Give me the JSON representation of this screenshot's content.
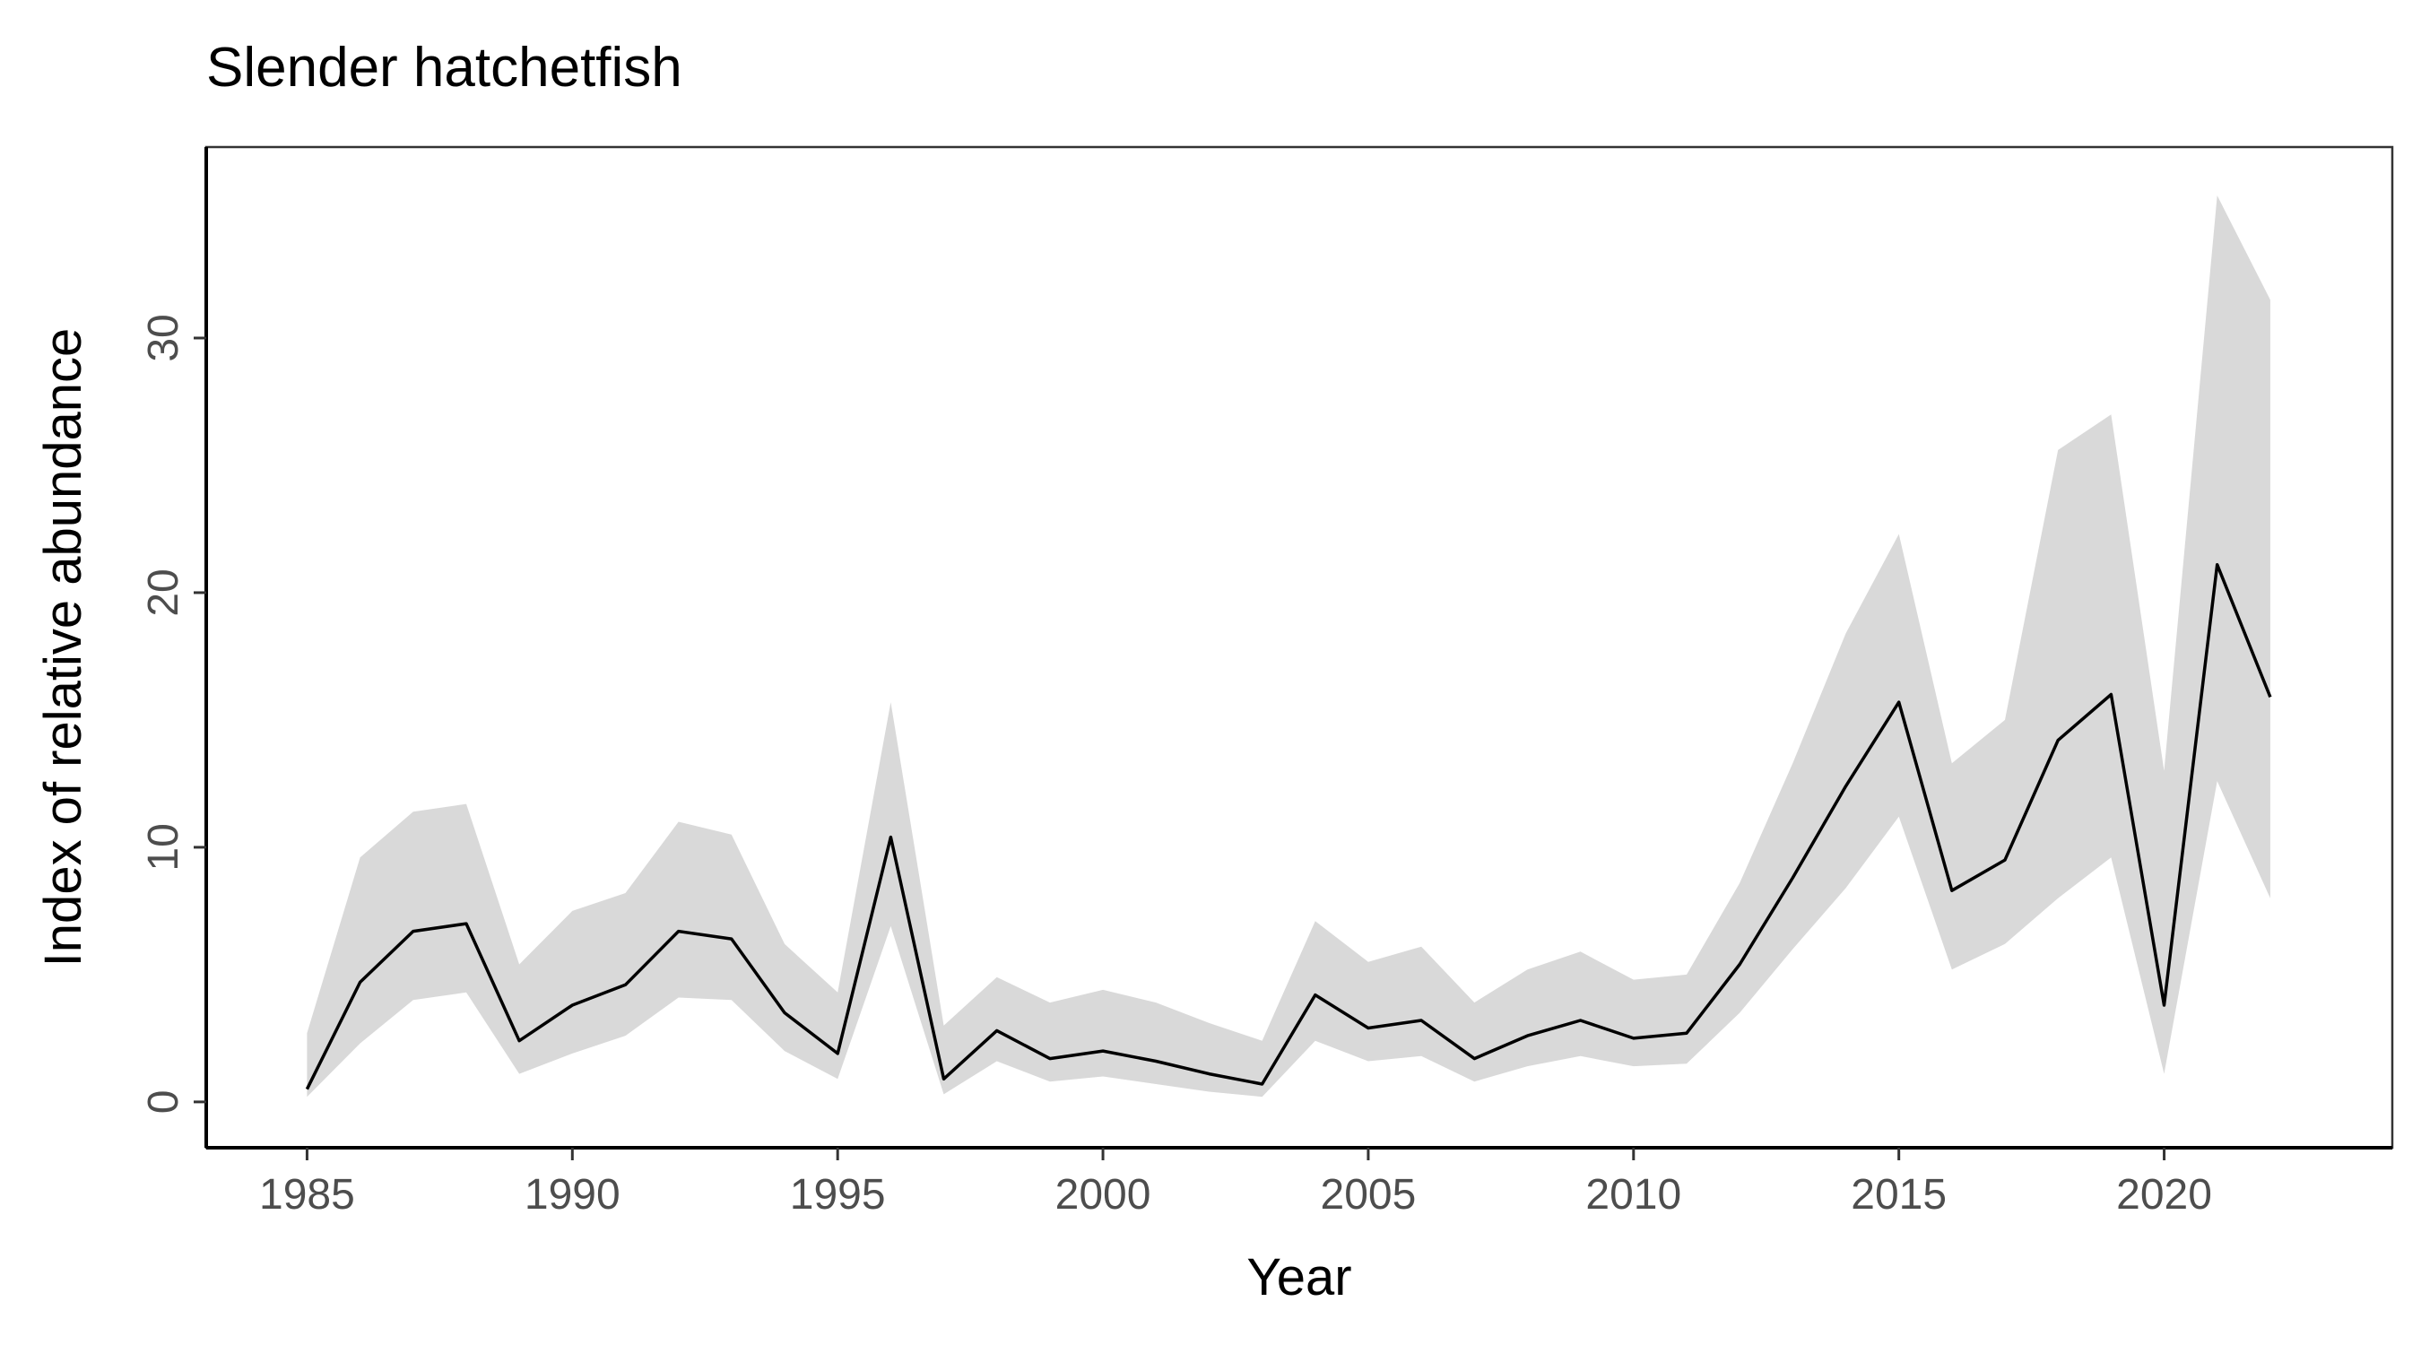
{
  "chart_data": {
    "type": "line",
    "title": "Slender hatchetfish",
    "xlabel": "Year",
    "ylabel": "Index of relative abundance",
    "xlim": [
      1983.1,
      2024.3
    ],
    "ylim": [
      -1.8,
      37.5
    ],
    "xticks": [
      1985,
      1990,
      1995,
      2000,
      2005,
      2010,
      2015,
      2020
    ],
    "yticks": [
      0,
      10,
      20,
      30
    ],
    "grid": false,
    "legend": "none",
    "line_color": "#000000",
    "ribbon_color": "#d9d9d9",
    "x": [
      1985,
      1986,
      1987,
      1988,
      1989,
      1990,
      1991,
      1992,
      1993,
      1994,
      1995,
      1996,
      1997,
      1998,
      1999,
      2000,
      2001,
      2002,
      2003,
      2004,
      2005,
      2006,
      2007,
      2008,
      2009,
      2010,
      2011,
      2012,
      2013,
      2014,
      2015,
      2016,
      2017,
      2018,
      2019,
      2020,
      2021,
      2022
    ],
    "series": [
      {
        "values": [
          0.5,
          4.7,
          6.7,
          7.0,
          2.4,
          3.8,
          4.6,
          6.7,
          6.4,
          3.5,
          1.9,
          10.4,
          0.9,
          2.8,
          1.7,
          2.0,
          1.6,
          1.1,
          0.7,
          4.2,
          2.9,
          3.2,
          1.7,
          2.6,
          3.2,
          2.5,
          2.7,
          5.4,
          8.8,
          12.4,
          15.7,
          8.3,
          9.5,
          14.2,
          16.0,
          3.8,
          21.1,
          15.9
        ],
        "lower": [
          0.2,
          2.3,
          4.0,
          4.3,
          1.1,
          1.9,
          2.6,
          4.1,
          4.0,
          2.0,
          0.9,
          6.9,
          0.3,
          1.6,
          0.8,
          1.0,
          0.7,
          0.4,
          0.2,
          2.4,
          1.6,
          1.8,
          0.8,
          1.4,
          1.8,
          1.4,
          1.5,
          3.5,
          6.0,
          8.4,
          11.2,
          5.2,
          6.2,
          8.0,
          9.6,
          1.1,
          12.6,
          8.0
        ],
        "upper": [
          2.7,
          9.6,
          11.4,
          11.7,
          5.4,
          7.5,
          8.2,
          11.0,
          10.5,
          6.2,
          4.3,
          15.7,
          3.0,
          4.9,
          3.9,
          4.4,
          3.9,
          3.1,
          2.4,
          7.1,
          5.5,
          6.1,
          3.9,
          5.2,
          5.9,
          4.8,
          5.0,
          8.6,
          13.3,
          18.4,
          22.3,
          13.3,
          15.0,
          25.6,
          27.0,
          13.0,
          35.6,
          31.5
        ]
      }
    ]
  }
}
